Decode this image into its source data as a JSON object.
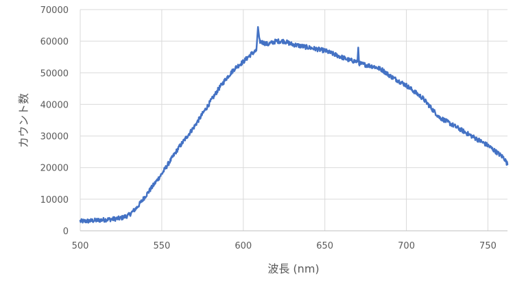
{
  "chart_data": {
    "type": "line",
    "title": "",
    "xlabel": "波長 (nm)",
    "ylabel": "カウント数",
    "xlim": [
      500,
      762
    ],
    "ylim": [
      0,
      70000
    ],
    "x_ticks": [
      500,
      550,
      600,
      650,
      700,
      750
    ],
    "y_ticks": [
      0,
      10000,
      20000,
      30000,
      40000,
      50000,
      60000,
      70000
    ],
    "grid": true,
    "legend": "none",
    "line_color": "#4472C4",
    "series": [
      {
        "x": [
          500,
          505,
          510,
          515,
          520,
          525,
          530,
          535,
          540,
          545,
          550,
          555,
          560,
          565,
          570,
          575,
          580,
          585,
          590,
          595,
          600,
          605,
          608,
          609,
          610,
          615,
          620,
          625,
          630,
          635,
          640,
          645,
          650,
          655,
          660,
          665,
          670,
          670.5,
          671,
          675,
          680,
          685,
          690,
          695,
          700,
          705,
          710,
          715,
          720,
          725,
          730,
          735,
          740,
          745,
          750,
          755,
          760,
          762
        ],
        "y": [
          3000,
          3100,
          3300,
          3500,
          3700,
          4000,
          5000,
          7500,
          11000,
          14500,
          18000,
          22000,
          26000,
          29500,
          33000,
          37000,
          41000,
          45000,
          48500,
          51500,
          53500,
          56000,
          57000,
          64500,
          60000,
          59000,
          60000,
          60000,
          59000,
          58500,
          58000,
          57500,
          57000,
          56000,
          55000,
          54000,
          53500,
          58000,
          53000,
          52500,
          52000,
          51000,
          49000,
          47500,
          46000,
          44000,
          42000,
          39000,
          36000,
          34500,
          33000,
          31500,
          30000,
          28500,
          27000,
          25000,
          23000,
          21000
        ]
      }
    ]
  }
}
